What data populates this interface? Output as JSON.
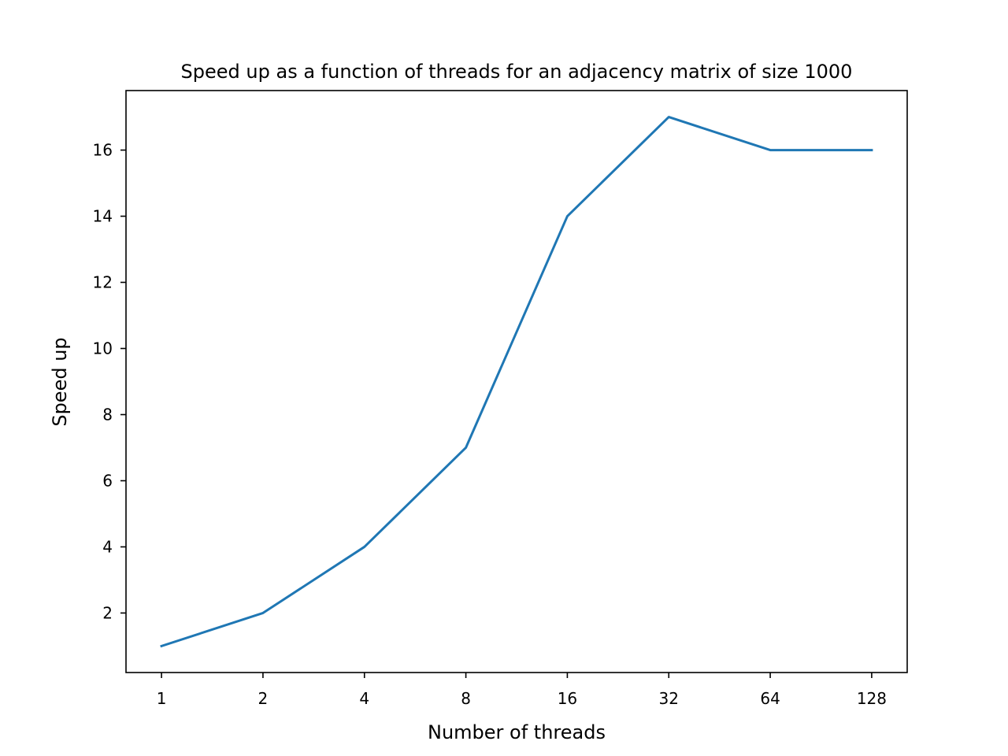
{
  "chart_data": {
    "type": "line",
    "title": "Speed up as a function of threads for an adjacency matrix of size 1000",
    "xlabel": "Number of threads",
    "ylabel": "Speed up",
    "x_scale": "log2",
    "categories": [
      "1",
      "2",
      "4",
      "8",
      "16",
      "32",
      "64",
      "128"
    ],
    "x": [
      1,
      2,
      4,
      8,
      16,
      32,
      64,
      128
    ],
    "y_ticks": [
      2,
      4,
      6,
      8,
      10,
      12,
      14,
      16
    ],
    "ylim": [
      0.2,
      17.8
    ],
    "grid": false,
    "series": [
      {
        "color": "#1f77b4",
        "values": [
          1,
          2,
          4,
          7,
          14,
          17,
          16,
          16
        ]
      }
    ]
  }
}
